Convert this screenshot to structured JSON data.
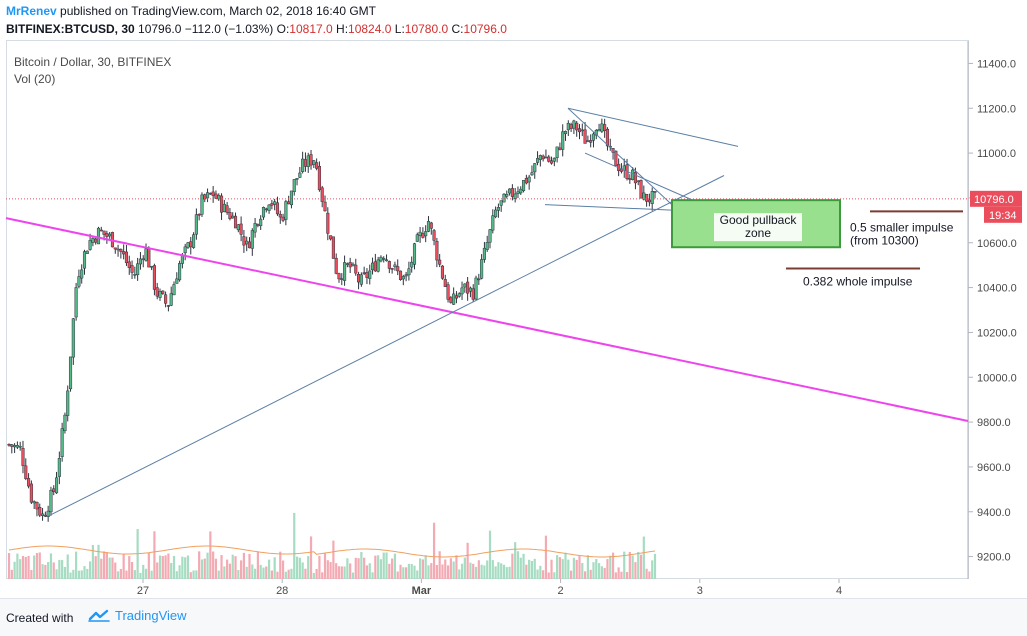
{
  "header": {
    "author": "MrRenev",
    "published": "published on TradingView.com, March 02, 2018 16:40 GMT",
    "symbol": "BITFINEX:BTCUSD, 30",
    "last": "10796.0",
    "change": "−112.0 (−1.03%)",
    "o_label": "O:",
    "o": "10817.0",
    "h_label": "H:",
    "h": "10824.0",
    "l_label": "L:",
    "l": "10780.0",
    "c_label": "C:",
    "c": "10796.0"
  },
  "legend": {
    "title": "Bitcoin / Dollar, 30, BITFINEX",
    "indicator": "Vol (20)"
  },
  "footer": {
    "created": "Created with",
    "brand": "TradingView"
  },
  "colors": {
    "up": "#53b987",
    "down": "#eb4d5c",
    "trendline": "#5b7fa6",
    "magenta": "#ee44ee",
    "zone_fill": "#98e08e",
    "zone_border": "#3c9a3c",
    "level": "#7b3d32",
    "price_tag": "#eb4d5c",
    "vol_ma": "#f0a060"
  },
  "chart_data": {
    "type": "candlestick",
    "title": "Bitcoin / Dollar, 30, BITFINEX",
    "ylim": [
      9100,
      11500
    ],
    "y_ticks": [
      11400,
      11200,
      11000,
      10800,
      10600,
      10400,
      10200,
      10000,
      9800,
      9600,
      9400,
      9200
    ],
    "y_tick_labels": [
      "11400.0",
      "11200.0",
      "11000.0",
      "10800.0",
      "10600.0",
      "10400.0",
      "10200.0",
      "10000.0",
      "9800.0",
      "9600.0",
      "9400.0",
      "9200.0"
    ],
    "x_ticks": [
      "27",
      "28",
      "Mar",
      "2",
      "3",
      "4"
    ],
    "price_path": [
      9700,
      9680,
      9460,
      9380,
      9500,
      9850,
      10450,
      10600,
      10650,
      10620,
      10550,
      10450,
      10580,
      10380,
      10320,
      10500,
      10600,
      10780,
      10820,
      10750,
      10700,
      10580,
      10720,
      10800,
      10700,
      10850,
      10950,
      10980,
      10700,
      10450,
      10500,
      10420,
      10480,
      10560,
      10480,
      10430,
      10600,
      10700,
      10500,
      10320,
      10400,
      10380,
      10560,
      10750,
      10800,
      10850,
      10900,
      11000,
      10950,
      11100,
      11120,
      11050,
      11150,
      11000,
      10930,
      10900,
      10800,
      10796
    ],
    "last_price": "10796.0",
    "time_tag": "19:34",
    "annotations": {
      "zone": "Good pullback\nzone",
      "zone_line1": "Good pullback",
      "zone_line2": "zone",
      "level1_line1": "0.5 smaller impulse",
      "level1_line2": "(from 10300)",
      "level1_price": 10740,
      "level2": "0.382 whole impulse",
      "level2_price": 10485,
      "zone_top": 10790,
      "zone_bottom": 10580
    }
  }
}
